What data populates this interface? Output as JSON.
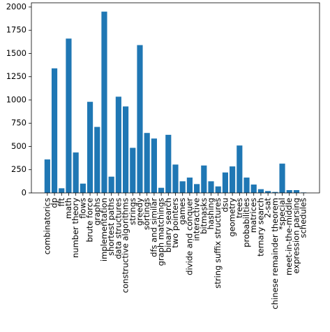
{
  "chart_data": {
    "type": "bar",
    "categories": [
      "combinatorics",
      "dp",
      "fft",
      "math",
      "number theory",
      "flows",
      "brute force",
      "graphs",
      "implementation",
      "shortest paths",
      "data structures",
      "constructive algorithms",
      "strings",
      "greedy",
      "sortings",
      "dfs and similar",
      "graph matchings",
      "binary search",
      "two pointers",
      "games",
      "divide and conquer",
      "interactive",
      "bitmasks",
      "hashing",
      "string suffix structures",
      "dsu",
      "geometry",
      "trees",
      "probabilities",
      "matrices",
      "ternary search",
      "2-sat",
      "chinese remainder theorem",
      "*special",
      "meet-in-the-middle",
      "expression parsing",
      "schedules"
    ],
    "values": [
      360,
      1340,
      50,
      1660,
      435,
      100,
      980,
      710,
      1950,
      175,
      1035,
      930,
      485,
      1590,
      645,
      585,
      55,
      625,
      305,
      125,
      165,
      95,
      295,
      125,
      70,
      220,
      285,
      510,
      165,
      90,
      40,
      20,
      10,
      315,
      30,
      30,
      5
    ],
    "color": "#1f77b4",
    "ylim": [
      0,
      2045
    ],
    "yticks": [
      0,
      250,
      500,
      750,
      1000,
      1250,
      1500,
      1750,
      2000
    ],
    "grid": false
  }
}
